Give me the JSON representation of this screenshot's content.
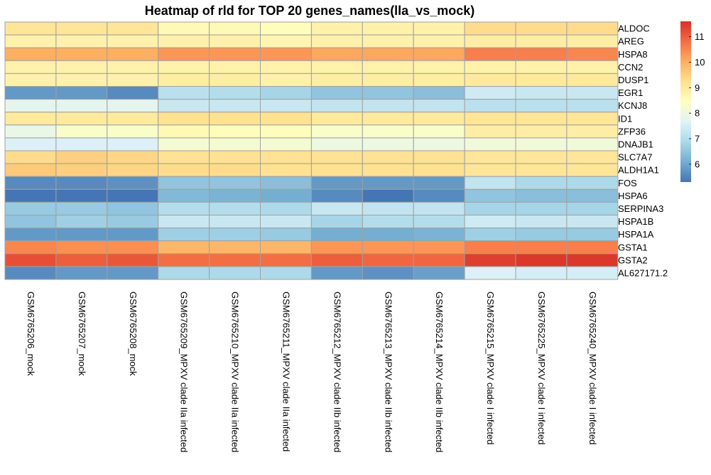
{
  "chart_data": {
    "type": "heatmap",
    "title": "Heatmap of rld for TOP 20 genes_names(lla_vs_mock)",
    "rows": [
      "ALDOC",
      "AREG",
      "HSPA8",
      "CCN2",
      "DUSP1",
      "EGR1",
      "KCNJ8",
      "ID1",
      "ZFP36",
      "DNAJB1",
      "SLC7A7",
      "ALDH1A1",
      "FOS",
      "HSPA6",
      "SERPINA3",
      "HSPA1B",
      "HSPA1A",
      "GSTA1",
      "GSTA2",
      "AL627171.2"
    ],
    "columns": [
      "GSM6765206_mock",
      "GSM6765207_mock",
      "GSM6765208_mock",
      "GSM6765209_MPXV clade IIa infected",
      "GSM6765210_MPXV clade IIa infected",
      "GSM6765211_MPXV clade IIa infected",
      "GSM6765212_MPXV clade IIb infected",
      "GSM6765213_MPXV clade IIb infected",
      "GSM6765214_MPXV clade IIb infected",
      "GSM6765215_MPXV clade I infected",
      "GSM6765225_MPXV clade I infected",
      "GSM6765240_MPXV clade I infected"
    ],
    "values": [
      [
        9.1,
        9.1,
        9.1,
        8.6,
        8.6,
        8.5,
        8.8,
        8.8,
        8.8,
        9.3,
        9.3,
        9.3
      ],
      [
        8.8,
        8.8,
        8.8,
        8.8,
        8.8,
        8.7,
        8.8,
        8.8,
        8.8,
        8.9,
        8.9,
        8.9
      ],
      [
        10.0,
        10.0,
        10.0,
        10.3,
        10.3,
        10.3,
        10.1,
        10.1,
        10.1,
        10.6,
        10.6,
        10.5
      ],
      [
        8.8,
        8.8,
        8.8,
        8.8,
        8.8,
        8.8,
        8.8,
        8.8,
        8.8,
        8.8,
        8.8,
        8.8
      ],
      [
        8.8,
        8.8,
        8.8,
        8.9,
        8.9,
        8.8,
        8.9,
        8.9,
        8.9,
        9.0,
        9.0,
        9.0
      ],
      [
        5.8,
        5.8,
        5.6,
        7.1,
        7.0,
        6.8,
        6.5,
        6.5,
        6.4,
        7.4,
        7.3,
        7.3
      ],
      [
        7.8,
        7.8,
        7.8,
        7.3,
        7.3,
        7.3,
        7.2,
        7.2,
        7.2,
        7.1,
        7.1,
        7.1
      ],
      [
        9.0,
        9.0,
        9.0,
        9.2,
        9.2,
        9.2,
        9.0,
        9.0,
        9.0,
        9.1,
        9.1,
        9.1
      ],
      [
        7.9,
        8.3,
        8.3,
        8.6,
        8.5,
        8.5,
        8.3,
        8.3,
        8.3,
        8.9,
        8.9,
        8.9
      ],
      [
        7.6,
        7.6,
        7.6,
        8.2,
        8.2,
        8.2,
        8.0,
        8.0,
        8.0,
        8.1,
        8.1,
        8.1
      ],
      [
        9.3,
        9.5,
        9.4,
        9.2,
        9.2,
        9.2,
        9.2,
        9.2,
        9.2,
        9.1,
        9.1,
        9.1
      ],
      [
        9.6,
        9.5,
        9.4,
        9.3,
        9.3,
        9.2,
        9.2,
        9.2,
        9.2,
        9.1,
        9.1,
        9.1
      ],
      [
        5.6,
        5.6,
        5.7,
        6.5,
        6.5,
        6.4,
        5.8,
        5.8,
        5.8,
        7.2,
        6.9,
        6.9
      ],
      [
        5.2,
        5.0,
        5.1,
        6.3,
        6.2,
        6.1,
        5.6,
        5.3,
        5.6,
        6.5,
        6.4,
        6.4
      ],
      [
        6.6,
        6.6,
        6.5,
        7.0,
        7.0,
        6.9,
        7.3,
        7.2,
        7.2,
        6.8,
        6.8,
        6.8
      ],
      [
        6.5,
        6.7,
        6.6,
        7.3,
        7.3,
        7.3,
        6.8,
        7.0,
        7.0,
        7.4,
        7.3,
        7.3
      ],
      [
        5.8,
        5.8,
        5.8,
        6.7,
        6.7,
        6.6,
        6.1,
        6.1,
        6.2,
        6.7,
        6.6,
        6.6
      ],
      [
        10.5,
        10.4,
        10.4,
        9.9,
        9.9,
        9.9,
        10.3,
        10.3,
        10.3,
        10.6,
        10.6,
        10.6
      ],
      [
        11.2,
        11.0,
        11.1,
        10.8,
        10.8,
        10.8,
        11.0,
        10.9,
        10.9,
        11.4,
        11.5,
        11.5
      ],
      [
        5.6,
        5.8,
        5.8,
        6.9,
        6.9,
        6.9,
        5.8,
        5.7,
        5.9,
        7.6,
        7.5,
        7.5
      ]
    ],
    "legend": {
      "ticks": [
        "6",
        "7",
        "8",
        "9",
        "10",
        "11"
      ],
      "tick_values": [
        6,
        7,
        8,
        9,
        10,
        11
      ],
      "range": [
        5.3,
        11.6
      ],
      "colors": [
        "#4575b4",
        "#74add1",
        "#abd9e9",
        "#e0f3f8",
        "#ffffbf",
        "#fee090",
        "#fdae61",
        "#f46d43",
        "#d73027"
      ],
      "placement": "right"
    },
    "grid": true
  }
}
